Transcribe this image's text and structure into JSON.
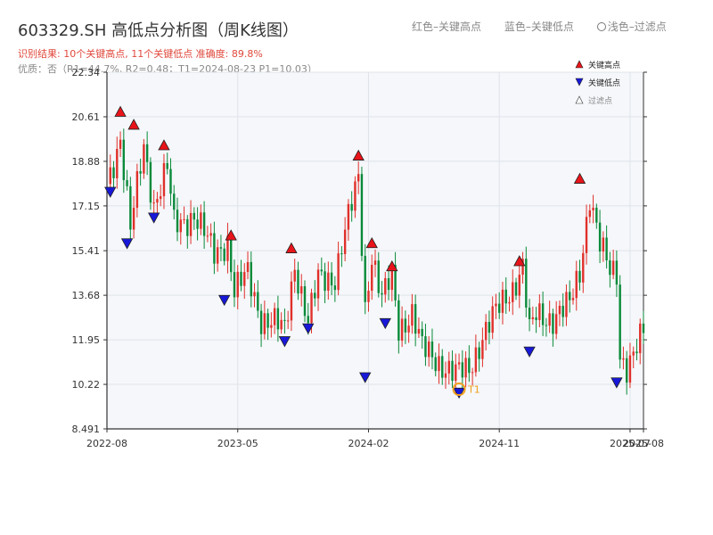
{
  "header": {
    "title": "603329.SH 高低点分析图（周K线图）",
    "result_line": "识别结果: 10个关键高点, 11个关键低点  准确度: 89.8%",
    "quality_line": "优质：否（R1=44.7%, R2=0.48；T1=2024-08-23 P1=10.03）"
  },
  "top_legend": {
    "red": "红色–关键高点",
    "blue": "蓝色–关键低点",
    "light": "浅色–过滤点"
  },
  "colors": {
    "up": "#e0302a",
    "down": "#0a8a3a",
    "high_marker": "#e8141a",
    "low_marker": "#1818d8",
    "t1_marker": "#f0a020",
    "plot_bg": "#f5f7fa",
    "grid": "#dfe3ea"
  },
  "chart_data": {
    "type": "candlestick",
    "y_ticks": [
      "8.491",
      "10.22",
      "11.95",
      "13.68",
      "15.41",
      "17.15",
      "18.88",
      "20.61",
      "22.34"
    ],
    "ylim": [
      8.491,
      22.34
    ],
    "x_ticks": [
      "2022-08",
      "2023-05",
      "2024-02",
      "2024-11",
      "2025-07",
      "2025-08"
    ],
    "x_tick_weeks": [
      0,
      39,
      78,
      117,
      156,
      160
    ],
    "xlim": [
      0,
      160
    ],
    "legend": {
      "high": "关键高点",
      "low": "关键低点",
      "filtered": "过滤点"
    },
    "anchors": [
      [
        0,
        18.0
      ],
      [
        4,
        19.8
      ],
      [
        7,
        16.2
      ],
      [
        11,
        19.5
      ],
      [
        14,
        17.2
      ],
      [
        18,
        18.6
      ],
      [
        20,
        16.4
      ],
      [
        26,
        16.8
      ],
      [
        32,
        15.3
      ],
      [
        36,
        15.8
      ],
      [
        38,
        13.8
      ],
      [
        42,
        14.5
      ],
      [
        46,
        12.8
      ],
      [
        51,
        12.5
      ],
      [
        53,
        12.3
      ],
      [
        56,
        14.9
      ],
      [
        60,
        12.6
      ],
      [
        63,
        14.3
      ],
      [
        68,
        14.4
      ],
      [
        70,
        15.6
      ],
      [
        75,
        18.2
      ],
      [
        77,
        13.2
      ],
      [
        79,
        15.3
      ],
      [
        82,
        13.5
      ],
      [
        85,
        14.4
      ],
      [
        87,
        12.4
      ],
      [
        91,
        13.0
      ],
      [
        94,
        11.6
      ],
      [
        98,
        11.2
      ],
      [
        104,
        10.6
      ],
      [
        108,
        10.8
      ],
      [
        112,
        12.1
      ],
      [
        116,
        13.0
      ],
      [
        121,
        14.0
      ],
      [
        124,
        14.8
      ],
      [
        126,
        12.2
      ],
      [
        128,
        12.9
      ],
      [
        133,
        12.8
      ],
      [
        138,
        13.3
      ],
      [
        141,
        14.6
      ],
      [
        144,
        17.6
      ],
      [
        147,
        15.6
      ],
      [
        150,
        14.6
      ],
      [
        152,
        14.6
      ],
      [
        153,
        11.4
      ],
      [
        155,
        10.9
      ],
      [
        157,
        11.3
      ],
      [
        160,
        12.2
      ]
    ],
    "key_highs": [
      {
        "week": 4,
        "price": 20.8
      },
      {
        "week": 8,
        "price": 20.3
      },
      {
        "week": 17,
        "price": 19.5
      },
      {
        "week": 37,
        "price": 16.0
      },
      {
        "week": 55,
        "price": 15.5
      },
      {
        "week": 75,
        "price": 19.1
      },
      {
        "week": 79,
        "price": 15.7
      },
      {
        "week": 85,
        "price": 14.8
      },
      {
        "week": 123,
        "price": 15.0
      },
      {
        "week": 141,
        "price": 18.2
      }
    ],
    "key_lows": [
      {
        "week": 1,
        "price": 17.7
      },
      {
        "week": 6,
        "price": 15.7
      },
      {
        "week": 14,
        "price": 16.7
      },
      {
        "week": 35,
        "price": 13.5
      },
      {
        "week": 53,
        "price": 11.9
      },
      {
        "week": 60,
        "price": 12.4
      },
      {
        "week": 77,
        "price": 10.5
      },
      {
        "week": 83,
        "price": 12.6
      },
      {
        "week": 105,
        "price": 9.9
      },
      {
        "week": 126,
        "price": 11.5
      },
      {
        "week": 152,
        "price": 10.3
      }
    ],
    "t1": {
      "label": "T1",
      "week": 105,
      "price": 10.03
    }
  }
}
